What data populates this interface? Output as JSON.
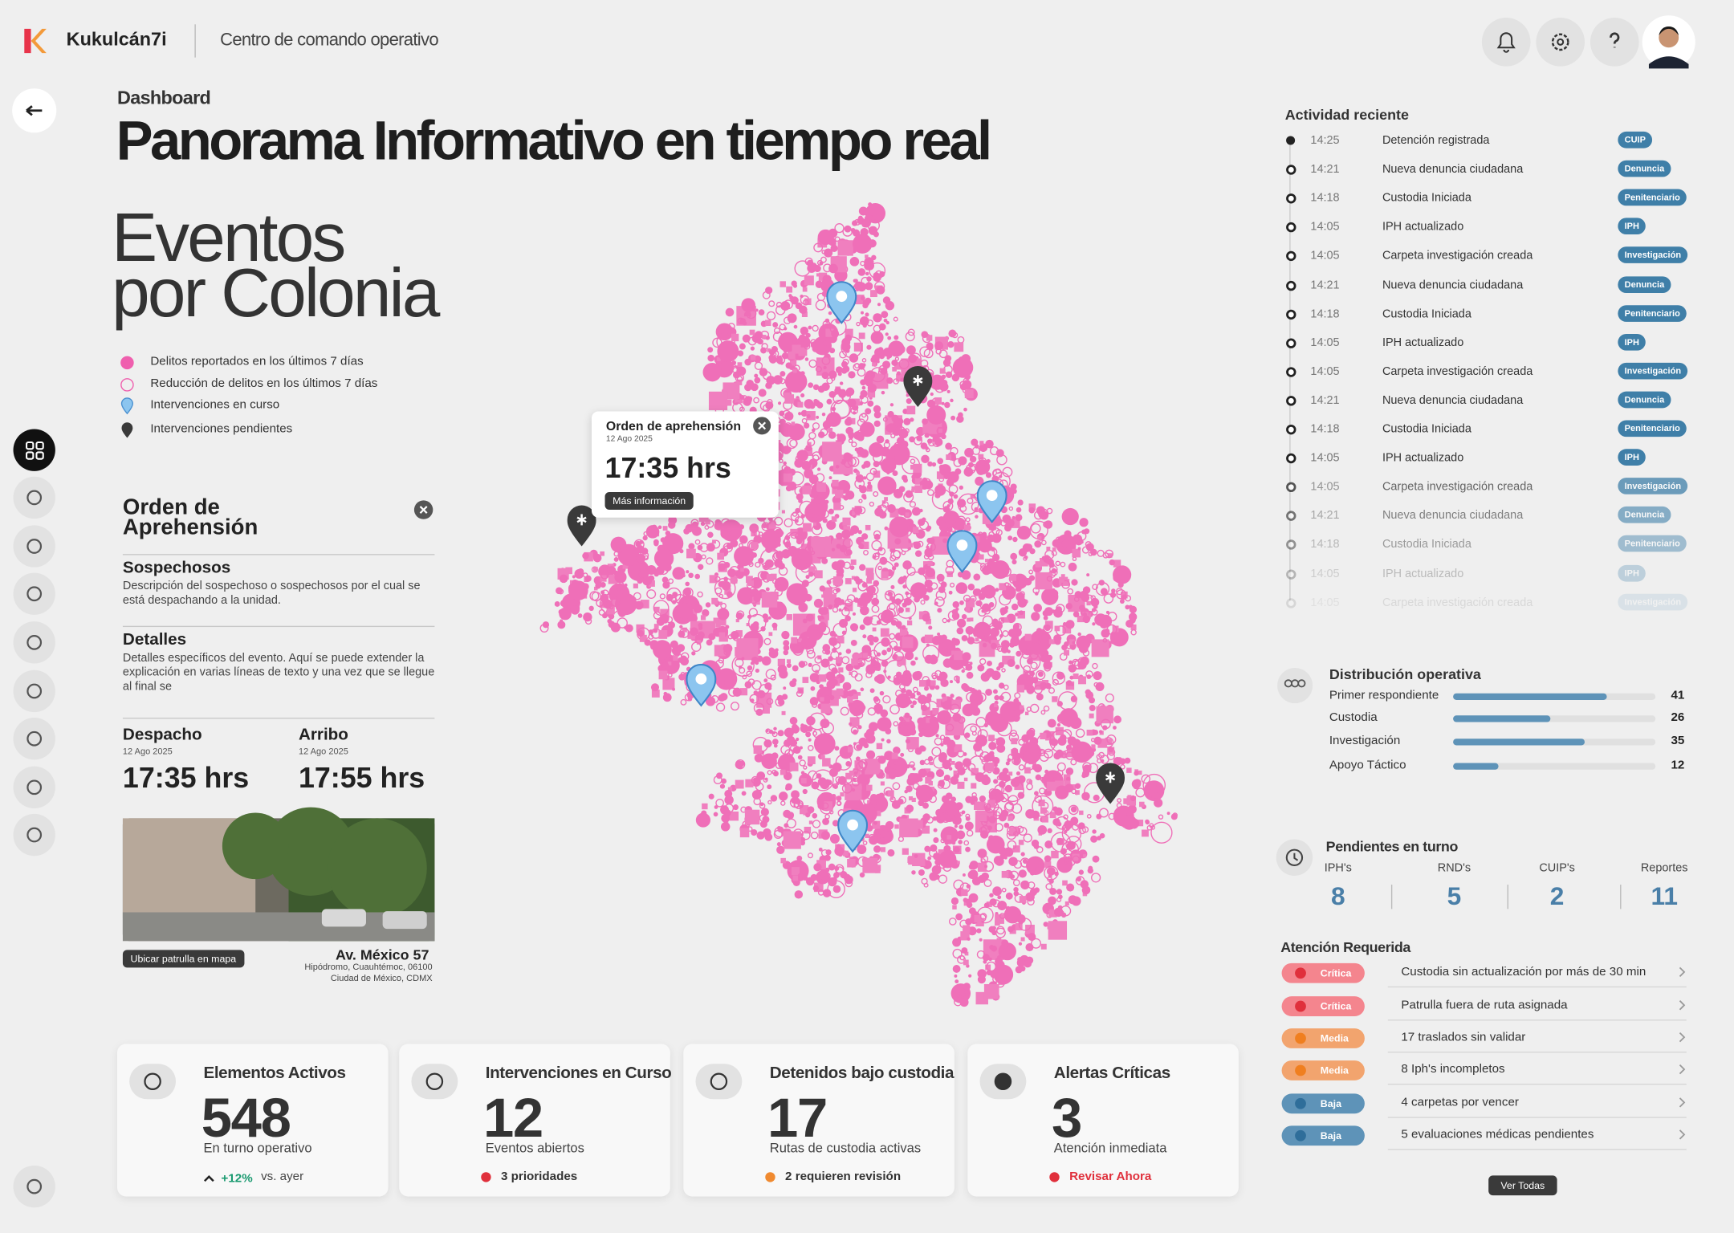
{
  "header": {
    "brand": "Kukulcán7i",
    "subtitle": "Centro de comando operativo"
  },
  "page": {
    "breadcrumb": "Dashboard",
    "title": "Panorama Informativo en tiempo real"
  },
  "map": {
    "title_line1": "Eventos",
    "title_line2": "por Colonia",
    "legend": [
      "Delitos reportados en los últimos 7 días",
      "Reducción de delitos en los últimos 7 días",
      "Intervenciones en curso",
      "Intervenciones pendientes"
    ],
    "popup": {
      "title": "Orden de aprehensión",
      "date": "12 Ago 2025",
      "time": "17:35 hrs",
      "button": "Más información"
    }
  },
  "detail": {
    "title_line1": "Orden de",
    "title_line2": "Aprehensión",
    "sections": [
      {
        "heading": "Sospechosos",
        "text": "Descripción del sospechoso o sospechosos por el cual se está despachando a la unidad."
      },
      {
        "heading": "Detalles",
        "text": "Detalles  específicos del evento. Aquí se puede extender la explicación en varias líneas de texto y una vez que se llegue al final se"
      }
    ],
    "times": [
      {
        "label": "Despacho",
        "date": "12 Ago 2025",
        "time": "17:35 hrs"
      },
      {
        "label": "Arribo",
        "date": "12 Ago 2025",
        "time": "17:55 hrs"
      }
    ],
    "photo_button": "Ubicar patrulla en mapa",
    "address": "Av. México 57",
    "address_line2": "Hipódromo, Cuauhtémoc, 06100",
    "address_line3": "Ciudad de México, CDMX"
  },
  "kpis": [
    {
      "title": "Elementos Activos",
      "value": 548,
      "caption": "En turno operativo",
      "trend": "+12%",
      "footer": "vs. ayer"
    },
    {
      "title": "Intervenciones en Curso",
      "value": 12,
      "caption": "Eventos abiertos",
      "footer": "3 prioridades",
      "footer_color": "#e0303c"
    },
    {
      "title": "Detenidos bajo custodia",
      "value": 17,
      "caption": "Rutas de custodia activas",
      "footer": "2 requieren revisión",
      "footer_color": "#f08a30"
    },
    {
      "title": "Alertas Críticas",
      "value": 3,
      "caption": "Atención inmediata",
      "footer": "Revisar Ahora",
      "footer_color": "#e0303c"
    }
  ],
  "activity": {
    "title": "Actividad reciente",
    "items": [
      {
        "time": "14:25",
        "text": "Detención registrada",
        "tag": "CUIP"
      },
      {
        "time": "14:21",
        "text": "Nueva denuncia ciudadana",
        "tag": "Denuncia"
      },
      {
        "time": "14:18",
        "text": "Custodia Iniciada",
        "tag": "Penitenciario"
      },
      {
        "time": "14:05",
        "text": "IPH actualizado",
        "tag": "IPH"
      },
      {
        "time": "14:05",
        "text": "Carpeta investigación creada",
        "tag": "Investigación"
      },
      {
        "time": "14:21",
        "text": "Nueva denuncia ciudadana",
        "tag": "Denuncia"
      },
      {
        "time": "14:18",
        "text": "Custodia Iniciada",
        "tag": "Penitenciario"
      },
      {
        "time": "14:05",
        "text": "IPH actualizado",
        "tag": "IPH"
      },
      {
        "time": "14:05",
        "text": "Carpeta investigación creada",
        "tag": "Investigación"
      },
      {
        "time": "14:21",
        "text": "Nueva denuncia ciudadana",
        "tag": "Denuncia"
      },
      {
        "time": "14:18",
        "text": "Custodia Iniciada",
        "tag": "Penitenciario"
      },
      {
        "time": "14:05",
        "text": "IPH actualizado",
        "tag": "IPH"
      },
      {
        "time": "14:05",
        "text": "Carpeta investigación creada",
        "tag": "Investigación"
      },
      {
        "time": "14:21",
        "text": "Nueva denuncia ciudadana",
        "tag": "Denuncia"
      },
      {
        "time": "14:18",
        "text": "Custodia Iniciada",
        "tag": "Penitenciario"
      },
      {
        "time": "14:05",
        "text": "IPH actualizado",
        "tag": "IPH"
      },
      {
        "time": "14:05",
        "text": "Carpeta investigación creada",
        "tag": "Investigación"
      }
    ]
  },
  "distribution": {
    "title": "Distribución operativa",
    "rows": [
      {
        "label": "Primer respondiente",
        "value": 41
      },
      {
        "label": "Custodia",
        "value": 26
      },
      {
        "label": "Investigación",
        "value": 35
      },
      {
        "label": "Apoyo Táctico",
        "value": 12
      }
    ]
  },
  "pending": {
    "title": "Pendientes en turno",
    "items": [
      {
        "label": "IPH's",
        "value": 8
      },
      {
        "label": "RND's",
        "value": 5
      },
      {
        "label": "CUIP's",
        "value": 2
      },
      {
        "label": "Reportes",
        "value": 11
      }
    ]
  },
  "attention": {
    "title": "Atención Requerida",
    "button": "Ver Todas",
    "items": [
      {
        "level": "Crítica",
        "color": "#f4858e",
        "dot": "#e0303c",
        "text": "Custodia sin actualización por más de 30 min"
      },
      {
        "level": "Crítica",
        "color": "#f4858e",
        "dot": "#e0303c",
        "text": "Patrulla fuera de ruta asignada"
      },
      {
        "level": "Media",
        "color": "#f2a46e",
        "dot": "#f07f1f",
        "text": "17 traslados sin validar"
      },
      {
        "level": "Media",
        "color": "#f2a46e",
        "dot": "#f07f1f",
        "text": "8 Iph's incompletos"
      },
      {
        "level": "Baja",
        "color": "#5e93b8",
        "dot": "#2f6e9a",
        "text": "4 carpetas por vencer"
      },
      {
        "level": "Baja",
        "color": "#5e93b8",
        "dot": "#2f6e9a",
        "text": "5 evaluaciones médicas pendientes"
      }
    ]
  }
}
